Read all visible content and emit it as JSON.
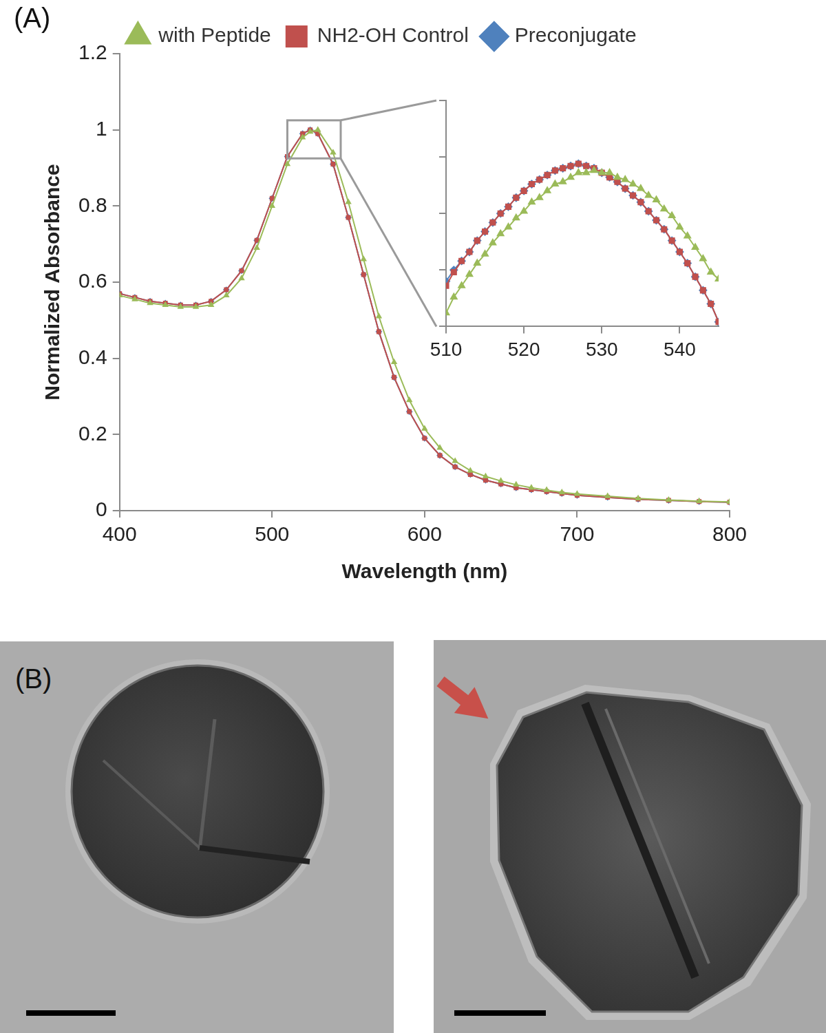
{
  "panel_labels": [
    "(A)",
    "(B)"
  ],
  "chart_data": [
    {
      "type": "line",
      "x_label": "Wavelength (nm)",
      "y_label": "Normalized Absorbance",
      "x": [
        400,
        410,
        420,
        430,
        440,
        450,
        460,
        470,
        480,
        490,
        500,
        510,
        520,
        525,
        530,
        540,
        550,
        560,
        570,
        580,
        590,
        600,
        610,
        620,
        630,
        640,
        650,
        660,
        670,
        680,
        690,
        700,
        720,
        740,
        760,
        780,
        800
      ],
      "series": [
        {
          "name": "Preconjugate",
          "color": "#4f81bd",
          "marker": "diamond",
          "values": [
            0.57,
            0.56,
            0.55,
            0.545,
            0.54,
            0.54,
            0.55,
            0.58,
            0.63,
            0.71,
            0.82,
            0.93,
            0.99,
            1.0,
            0.99,
            0.91,
            0.77,
            0.62,
            0.47,
            0.35,
            0.26,
            0.19,
            0.145,
            0.115,
            0.095,
            0.08,
            0.07,
            0.06,
            0.055,
            0.05,
            0.045,
            0.04,
            0.035,
            0.03,
            0.027,
            0.024,
            0.022
          ]
        },
        {
          "name": "NH2-OH Control",
          "color": "#c0504d",
          "marker": "square",
          "values": [
            0.57,
            0.56,
            0.55,
            0.545,
            0.54,
            0.54,
            0.55,
            0.58,
            0.63,
            0.71,
            0.82,
            0.93,
            0.99,
            1.0,
            0.99,
            0.91,
            0.77,
            0.62,
            0.47,
            0.35,
            0.26,
            0.19,
            0.145,
            0.115,
            0.095,
            0.08,
            0.07,
            0.06,
            0.055,
            0.05,
            0.045,
            0.04,
            0.035,
            0.03,
            0.027,
            0.024,
            0.022
          ]
        },
        {
          "name": "with Peptide",
          "color": "#9bbb59",
          "marker": "triangle",
          "values": [
            0.565,
            0.555,
            0.545,
            0.54,
            0.535,
            0.535,
            0.54,
            0.565,
            0.61,
            0.69,
            0.8,
            0.91,
            0.98,
            0.995,
            1.0,
            0.94,
            0.81,
            0.66,
            0.51,
            0.39,
            0.29,
            0.215,
            0.165,
            0.13,
            0.105,
            0.09,
            0.078,
            0.068,
            0.06,
            0.054,
            0.048,
            0.044,
            0.038,
            0.032,
            0.028,
            0.025,
            0.023
          ]
        }
      ],
      "xlim": [
        400,
        800
      ],
      "xticks": [
        400,
        500,
        600,
        700,
        800
      ],
      "ylim": [
        0,
        1.2
      ],
      "yticks": [
        0,
        0.2,
        0.4,
        0.6,
        0.8,
        1,
        1.2
      ],
      "grid": false,
      "legend": "top"
    },
    {
      "type": "line",
      "x": [
        510,
        511,
        512,
        513,
        514,
        515,
        516,
        517,
        518,
        519,
        520,
        521,
        522,
        523,
        524,
        525,
        526,
        527,
        528,
        529,
        530,
        531,
        532,
        533,
        534,
        535,
        536,
        537,
        538,
        539,
        540,
        541,
        542,
        543,
        544,
        545
      ],
      "series": [
        {
          "name": "Preconjugate",
          "color": "#4f81bd",
          "marker": "diamond",
          "values": [
            0.945,
            0.95,
            0.954,
            0.958,
            0.963,
            0.967,
            0.971,
            0.975,
            0.978,
            0.982,
            0.985,
            0.988,
            0.99,
            0.992,
            0.994,
            0.995,
            0.996,
            0.997,
            0.996,
            0.995,
            0.993,
            0.991,
            0.989,
            0.986,
            0.983,
            0.98,
            0.976,
            0.972,
            0.968,
            0.963,
            0.958,
            0.953,
            0.947,
            0.941,
            0.935,
            0.927
          ]
        },
        {
          "name": "NH2-OH Control",
          "color": "#c0504d",
          "marker": "square",
          "values": [
            0.943,
            0.949,
            0.954,
            0.958,
            0.963,
            0.967,
            0.971,
            0.975,
            0.978,
            0.982,
            0.985,
            0.988,
            0.99,
            0.992,
            0.994,
            0.995,
            0.996,
            0.997,
            0.996,
            0.995,
            0.993,
            0.991,
            0.989,
            0.986,
            0.983,
            0.98,
            0.976,
            0.972,
            0.968,
            0.963,
            0.958,
            0.953,
            0.947,
            0.941,
            0.935,
            0.927
          ]
        },
        {
          "name": "with Peptide",
          "color": "#9bbb59",
          "marker": "triangle",
          "values": [
            0.931,
            0.938,
            0.943,
            0.948,
            0.953,
            0.957,
            0.962,
            0.966,
            0.969,
            0.973,
            0.976,
            0.98,
            0.982,
            0.985,
            0.988,
            0.989,
            0.991,
            0.993,
            0.993,
            0.994,
            0.993,
            0.993,
            0.991,
            0.99,
            0.988,
            0.986,
            0.983,
            0.981,
            0.977,
            0.974,
            0.969,
            0.965,
            0.96,
            0.955,
            0.949,
            0.946
          ]
        }
      ],
      "xlim": [
        510,
        545
      ],
      "xticks": [
        510,
        520,
        530,
        540
      ],
      "ylim": [
        0.925,
        1.025
      ],
      "yticks": [
        0.925,
        0.95,
        0.975,
        1.0,
        1.025
      ],
      "grid": false,
      "tick_labels": "x"
    }
  ]
}
